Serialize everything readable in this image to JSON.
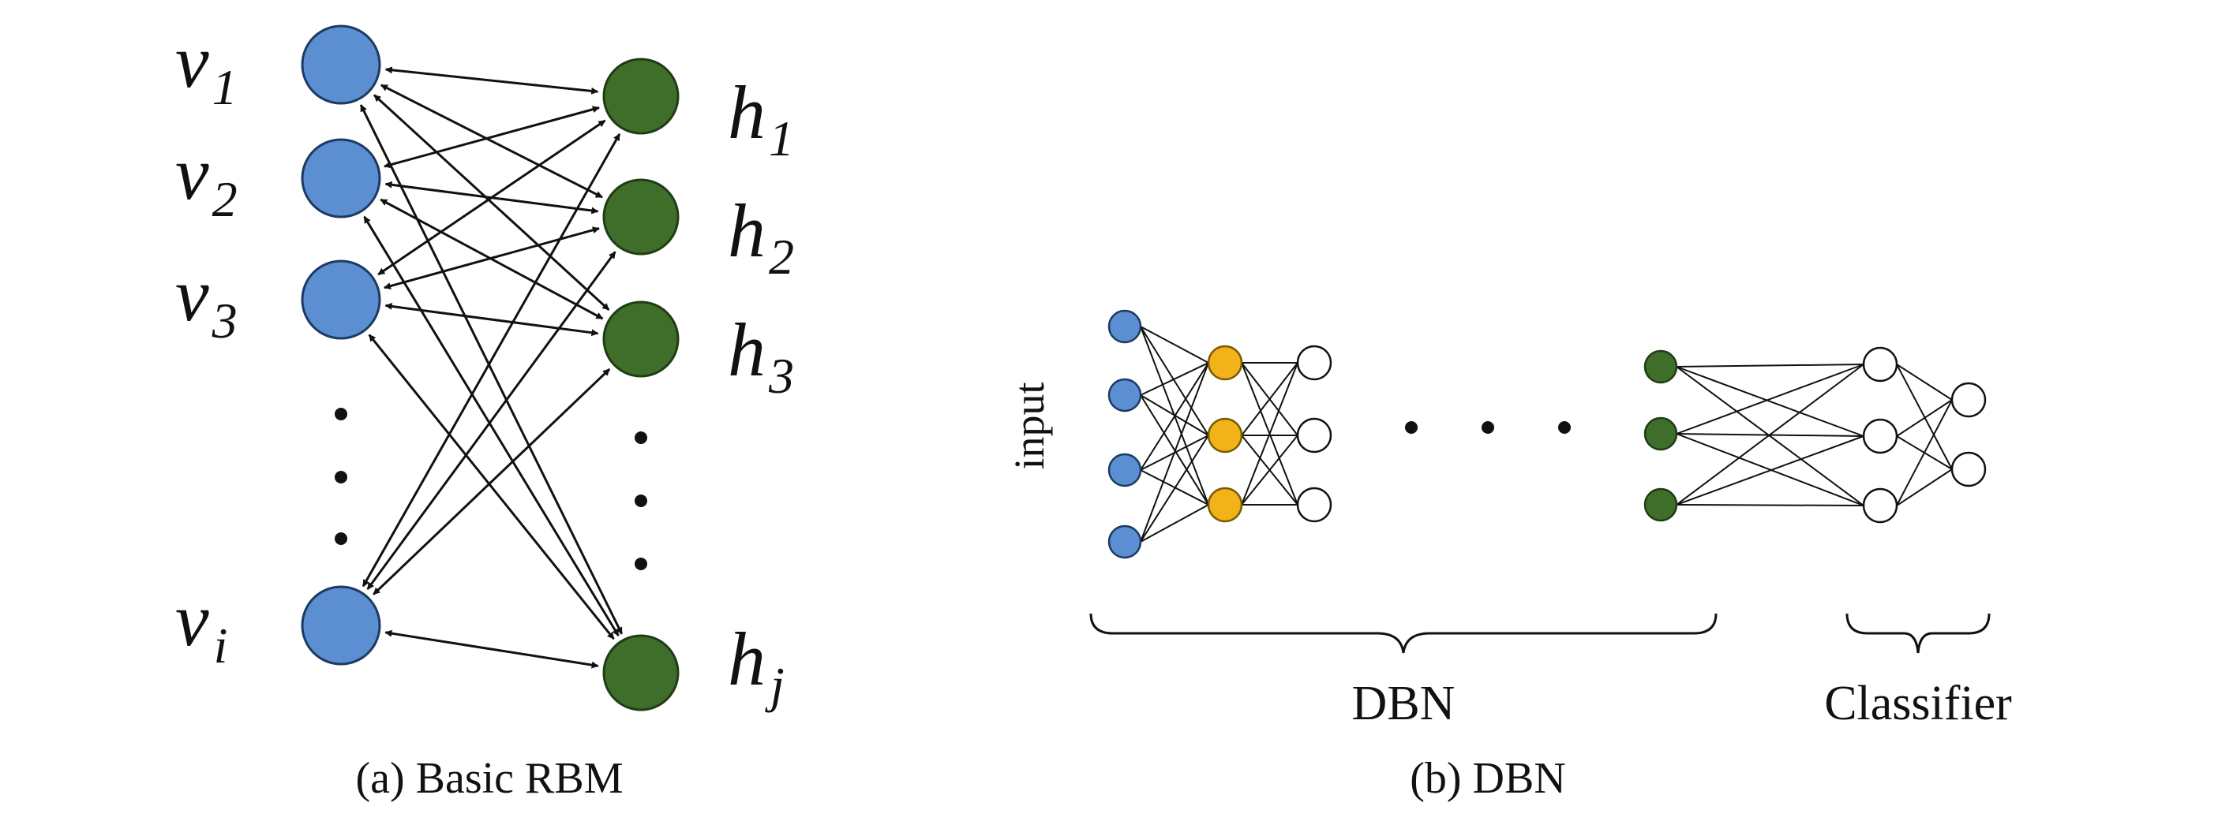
{
  "panel_a": {
    "caption": "(a) Basic RBM",
    "visible_nodes": [
      {
        "base": "v",
        "sub": "1"
      },
      {
        "base": "v",
        "sub": "2"
      },
      {
        "base": "v",
        "sub": "3"
      },
      {
        "base": "v",
        "sub": "i"
      }
    ],
    "hidden_nodes": [
      {
        "base": "h",
        "sub": "1"
      },
      {
        "base": "h",
        "sub": "2"
      },
      {
        "base": "h",
        "sub": "3"
      },
      {
        "base": "h",
        "sub": "j"
      }
    ]
  },
  "panel_b": {
    "caption": "(b) DBN",
    "input_label": "input",
    "dbn_label": "DBN",
    "classifier_label": "Classifier"
  },
  "colors": {
    "visible": "#5b8fd1",
    "hidden": "#3f6e2a",
    "dbn_layer2": "#f1b21a",
    "empty": "#ffffff",
    "edge": "#111111"
  }
}
